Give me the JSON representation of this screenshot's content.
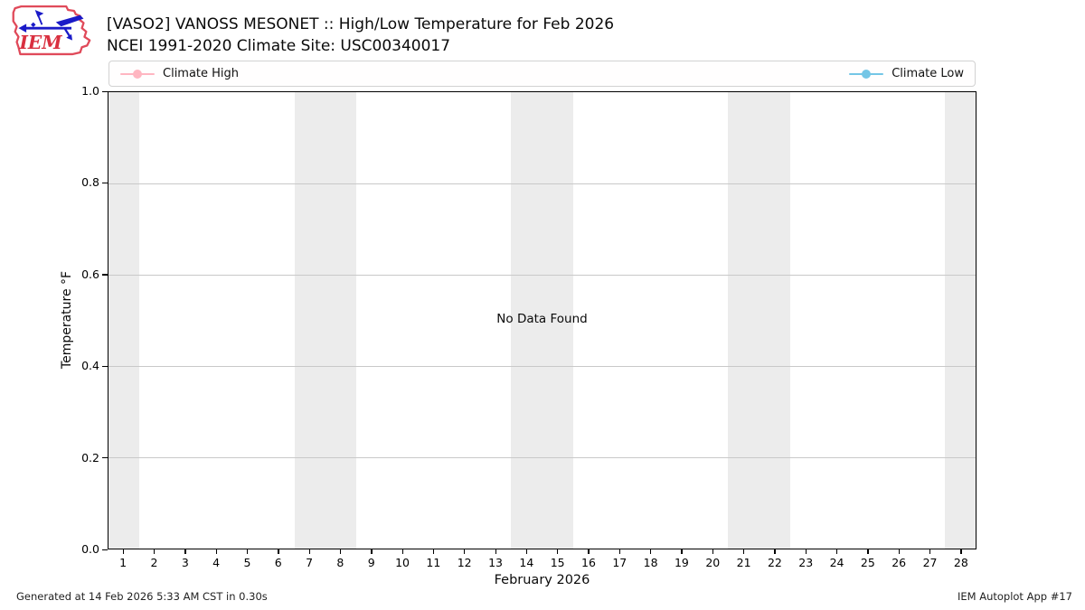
{
  "logo": {
    "text": "IEM"
  },
  "header": {
    "title_line1": "[VASO2] VANOSS MESONET :: High/Low Temperature for Feb 2026",
    "title_line2": "NCEI 1991-2020 Climate Site: USC00340017"
  },
  "legend": {
    "items": [
      {
        "label": "Climate High",
        "color": "#ffb6c1"
      },
      {
        "label": "Climate Low",
        "color": "#74c6e6"
      }
    ]
  },
  "axes": {
    "ylabel": "Temperature °F",
    "xlabel": "February 2026",
    "y_ticks": [
      "1.0",
      "0.8",
      "0.6",
      "0.4",
      "0.2",
      "0.0"
    ],
    "x_ticks": [
      "1",
      "2",
      "3",
      "4",
      "5",
      "6",
      "7",
      "8",
      "9",
      "10",
      "11",
      "12",
      "13",
      "14",
      "15",
      "16",
      "17",
      "18",
      "19",
      "20",
      "21",
      "22",
      "23",
      "24",
      "25",
      "26",
      "27",
      "28"
    ]
  },
  "plot": {
    "no_data_text": "No Data Found"
  },
  "footer": {
    "left": "Generated at 14 Feb 2026 5:33 AM CST in 0.30s",
    "right": "IEM Autoplot App #17"
  },
  "colors": {
    "weekend_band": "#ececec",
    "gridline": "#c9c9c9",
    "climate_high": "#ffb6c1",
    "climate_low": "#74c6e6",
    "logo_outline": "#e04a5a",
    "logo_vane": "#1a1ac8"
  },
  "chart_data": {
    "type": "line",
    "title": "[VASO2] VANOSS MESONET :: High/Low Temperature for Feb 2026",
    "subtitle": "NCEI 1991-2020 Climate Site: USC00340017",
    "xlabel": "February 2026",
    "ylabel": "Temperature °F",
    "x": [
      1,
      2,
      3,
      4,
      5,
      6,
      7,
      8,
      9,
      10,
      11,
      12,
      13,
      14,
      15,
      16,
      17,
      18,
      19,
      20,
      21,
      22,
      23,
      24,
      25,
      26,
      27,
      28
    ],
    "series": [
      {
        "name": "Climate High",
        "color": "#ffb6c1",
        "values": []
      },
      {
        "name": "Climate Low",
        "color": "#74c6e6",
        "values": []
      }
    ],
    "no_data": true,
    "annotation": "No Data Found",
    "xlim": [
      0.5,
      28.5
    ],
    "ylim": [
      0.0,
      1.0
    ],
    "y_tick_values": [
      0.0,
      0.2,
      0.4,
      0.6,
      0.8,
      1.0
    ],
    "grid": "horizontal",
    "legend_position": "top, high left / low right",
    "weekend_bands": [
      [
        0.5,
        1.5
      ],
      [
        6.5,
        8.5
      ],
      [
        13.5,
        15.5
      ],
      [
        20.5,
        22.5
      ],
      [
        27.5,
        28.5
      ]
    ]
  }
}
